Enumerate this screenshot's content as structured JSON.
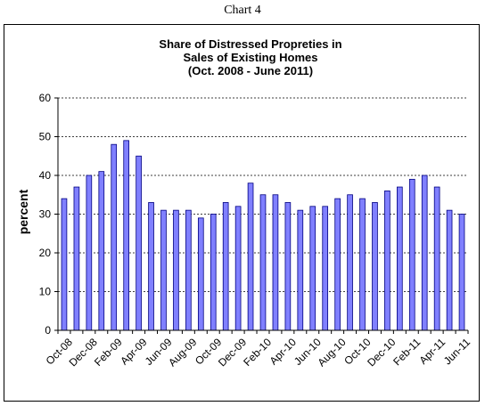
{
  "page": {
    "caption": "Chart 4"
  },
  "colors": {
    "bar_fill": "#8080ff",
    "bar_stroke": "#000080",
    "grid": "#000000",
    "background": "#ffffff"
  },
  "chart_data": {
    "type": "bar",
    "title_lines": [
      "Share of Distressed  Propreties  in",
      "Sales of Existing Homes",
      "(Oct. 2008  - June 2011)"
    ],
    "xlabel": "",
    "ylabel": "percent",
    "ylim": [
      0,
      60
    ],
    "yticks": [
      0,
      10,
      20,
      30,
      40,
      50,
      60
    ],
    "grid": "horizontal dashed lines",
    "legend": "none",
    "categories": [
      "Oct-08",
      "Nov-08",
      "Dec-08",
      "Jan-09",
      "Feb-09",
      "Mar-09",
      "Apr-09",
      "May-09",
      "Jun-09",
      "Jul-09",
      "Aug-09",
      "Sep-09",
      "Oct-09",
      "Nov-09",
      "Dec-09",
      "Jan-10",
      "Feb-10",
      "Mar-10",
      "Apr-10",
      "May-10",
      "Jun-10",
      "Jul-10",
      "Aug-10",
      "Sep-10",
      "Oct-10",
      "Nov-10",
      "Dec-10",
      "Jan-11",
      "Feb-11",
      "Mar-11",
      "Apr-11",
      "May-11",
      "Jun-11"
    ],
    "tick_labels": [
      "Oct-08",
      "Dec-08",
      "Feb-09",
      "Apr-09",
      "Jun-09",
      "Aug-09",
      "Oct-09",
      "Dec-09",
      "Feb-10",
      "Apr-10",
      "Jun-10",
      "Aug-10",
      "Oct-10",
      "Dec-10",
      "Feb-11",
      "Apr-11",
      "Jun-11"
    ],
    "values": [
      34,
      37,
      40,
      41,
      48,
      49,
      45,
      33,
      31,
      31,
      31,
      29,
      30,
      33,
      32,
      38,
      35,
      35,
      33,
      31,
      32,
      32,
      34,
      35,
      34,
      33,
      36,
      37,
      39,
      40,
      37,
      31,
      30
    ]
  }
}
